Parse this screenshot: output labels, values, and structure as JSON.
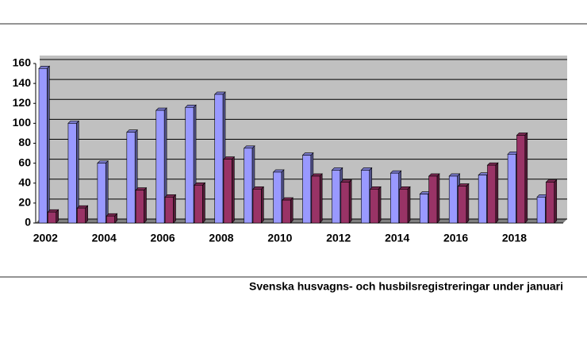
{
  "chart_data": {
    "type": "bar",
    "title": "Svenska husvagns- och husbilsregistreringar under januari",
    "categories": [
      "2002",
      null,
      "2004",
      null,
      "2006",
      null,
      "2008",
      null,
      "2010",
      null,
      "2012",
      null,
      "2014",
      null,
      "2016",
      null,
      "2018",
      null
    ],
    "series": [
      {
        "color": "#9999ff",
        "values": [
          155,
          100,
          60,
          91,
          113,
          116,
          129,
          75,
          51,
          68,
          53,
          53,
          50,
          29,
          47,
          48,
          69,
          26
        ]
      },
      {
        "color": "#993366",
        "values": [
          11,
          15,
          7,
          33,
          26,
          38,
          64,
          34,
          23,
          47,
          41,
          34,
          34,
          47,
          37,
          58,
          88,
          41
        ]
      }
    ],
    "ylim": [
      0,
      160
    ],
    "yticks": [
      0,
      20,
      40,
      60,
      80,
      100,
      120,
      140,
      160
    ],
    "grid": true
  }
}
